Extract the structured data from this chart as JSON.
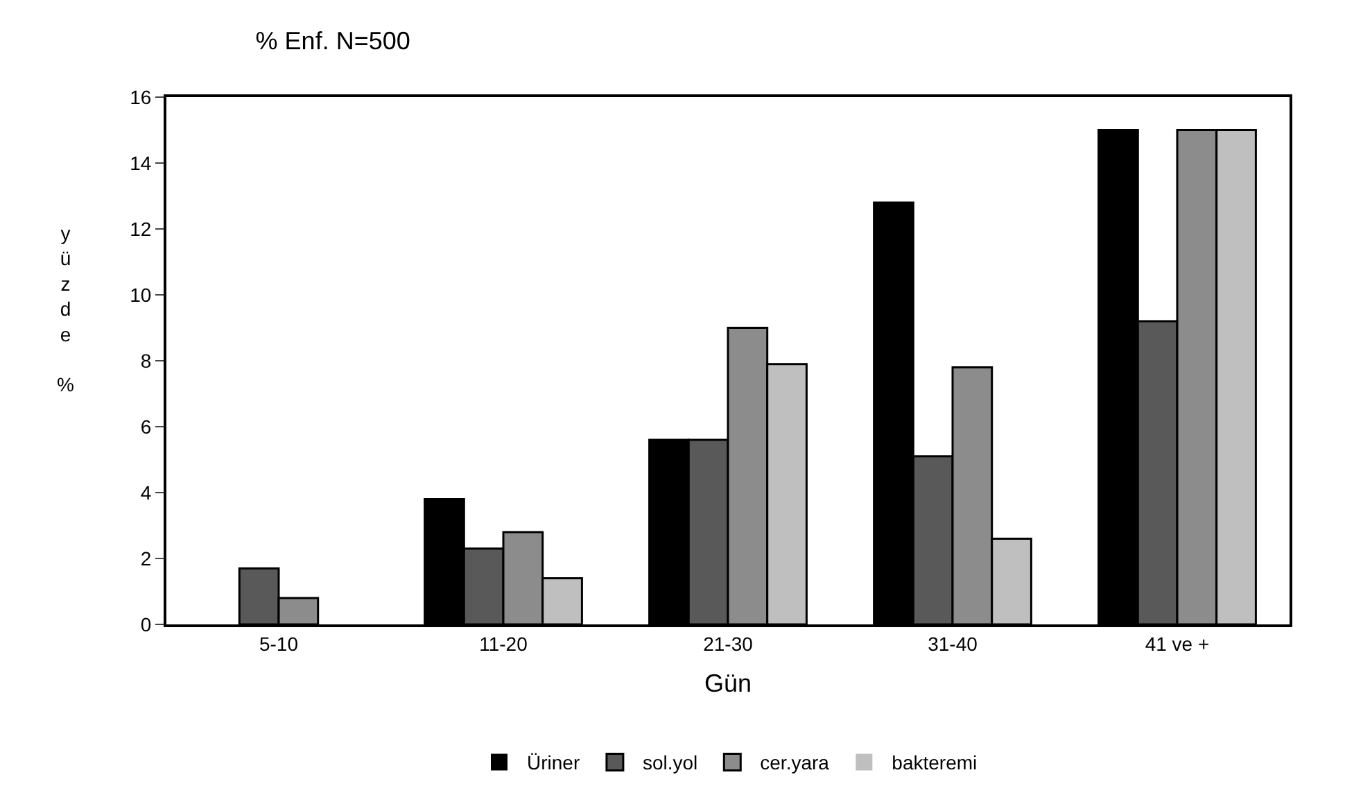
{
  "chart_data": {
    "type": "bar",
    "title": "% Enf. N=500",
    "xlabel": "Gün",
    "ylabel": "yüzde %",
    "categories": [
      "5-10",
      "11-20",
      "21-30",
      "31-40",
      "41 ve +"
    ],
    "series": [
      {
        "name": "Üriner",
        "color": "#000000",
        "values": [
          0,
          3.8,
          5.6,
          12.8,
          15
        ]
      },
      {
        "name": "sol.yol",
        "color": "#595959",
        "values": [
          1.7,
          2.3,
          5.6,
          5.1,
          9.2
        ]
      },
      {
        "name": "cer.yara",
        "color": "#8c8c8c",
        "values": [
          0.8,
          2.8,
          9.0,
          7.8,
          15
        ]
      },
      {
        "name": "bakteremi",
        "color": "#bfbfbf",
        "values": [
          0,
          1.4,
          7.9,
          2.6,
          15
        ]
      }
    ],
    "ylim": [
      0,
      16
    ],
    "yticks": [
      0,
      2,
      4,
      6,
      8,
      10,
      12,
      14,
      16
    ],
    "legend": "bottom"
  }
}
